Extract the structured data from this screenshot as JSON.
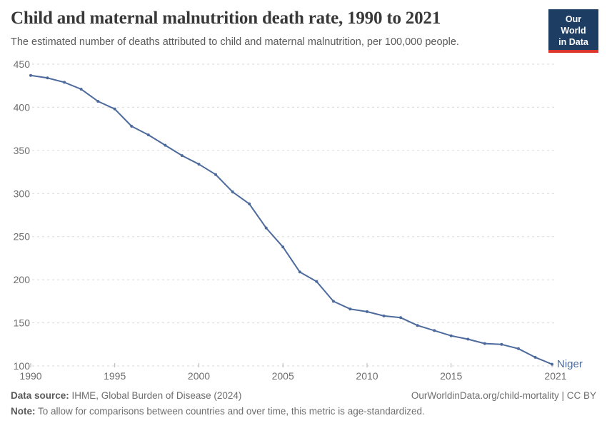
{
  "header": {
    "title": "Child and maternal malnutrition death rate, 1990 to 2021",
    "subtitle": "The estimated number of deaths attributed to child and maternal malnutrition, per 100,000 people.",
    "logo": {
      "line1": "Our World",
      "line2": "in Data",
      "bg_color": "#1d3d63",
      "accent_color": "#dc352c"
    }
  },
  "chart_data": {
    "type": "line",
    "title": "Child and maternal malnutrition death rate, 1990 to 2021",
    "x": [
      1990,
      1991,
      1992,
      1993,
      1994,
      1995,
      1996,
      1997,
      1998,
      1999,
      2000,
      2001,
      2002,
      2003,
      2004,
      2005,
      2006,
      2007,
      2008,
      2009,
      2010,
      2011,
      2012,
      2013,
      2014,
      2015,
      2016,
      2017,
      2018,
      2019,
      2020,
      2021
    ],
    "series": [
      {
        "name": "Niger",
        "color": "#4c6a9c",
        "values": [
          437,
          434,
          429,
          421,
          407,
          398,
          378,
          368,
          356,
          344,
          334,
          322,
          302,
          288,
          260,
          238,
          209,
          198,
          175,
          166,
          163,
          158,
          156,
          147,
          141,
          135,
          131,
          126,
          125,
          120,
          110,
          102
        ]
      }
    ],
    "xlim": [
      1990,
      2021
    ],
    "ylim": [
      100,
      450
    ],
    "y_ticks": [
      100,
      150,
      200,
      250,
      300,
      350,
      400,
      450
    ],
    "x_ticks": [
      1990,
      1995,
      2000,
      2005,
      2010,
      2015,
      2021
    ],
    "grid": "horizontal-dashed",
    "legend_position": "end-of-line"
  },
  "footer": {
    "source_label": "Data source:",
    "source_text": " IHME, Global Burden of Disease (2024)",
    "attribution": "OurWorldinData.org/child-mortality | CC BY",
    "note_label": "Note:",
    "note_text": " To allow for comparisons between countries and over time, this metric is age-standardized."
  }
}
